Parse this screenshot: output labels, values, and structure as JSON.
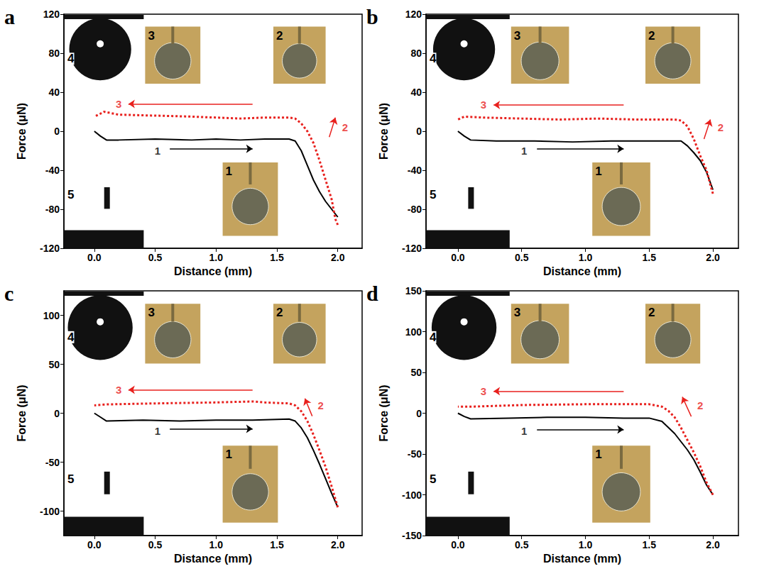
{
  "chart_data": [
    {
      "type": "line",
      "title": "a",
      "x_label": "Distance (mm)",
      "y_label": "Force (μN)",
      "xlim": [
        -0.25,
        2.2
      ],
      "xticks": [
        {
          "value": 0,
          "label": "0.0"
        },
        0.5,
        {
          "value": 1,
          "label": "1.0"
        },
        1.5,
        {
          "value": 2,
          "label": "2.0"
        }
      ],
      "ylim": [
        -120,
        120
      ],
      "yticks": [
        -120,
        -80,
        -40,
        0,
        40,
        80,
        120
      ],
      "grid": false,
      "series": [
        {
          "color": "#000000",
          "line_style": "solid",
          "marker": "none",
          "x": [
            0,
            0.05,
            0.1,
            0.2,
            0.5,
            0.8,
            1.0,
            1.2,
            1.4,
            1.6,
            1.65,
            1.7,
            1.75,
            1.8,
            1.85,
            1.9,
            1.95,
            2.0
          ],
          "values": [
            0,
            -5,
            -9,
            -9,
            -8,
            -9,
            -8,
            -9,
            -8,
            -8,
            -10,
            -20,
            -35,
            -50,
            -62,
            -72,
            -80,
            -88
          ]
        },
        {
          "color": "#e8211e",
          "line_style": "dotted",
          "marker": "none",
          "x": [
            2.0,
            1.98,
            1.95,
            1.9,
            1.85,
            1.8,
            1.75,
            1.7,
            1.65,
            1.6,
            1.4,
            1.2,
            1.0,
            0.8,
            0.5,
            0.2,
            0.08,
            0.05,
            0.0
          ],
          "values": [
            -96,
            -90,
            -70,
            -50,
            -30,
            -12,
            0,
            8,
            13,
            14,
            14,
            13,
            14,
            15,
            16,
            17,
            20,
            18,
            15
          ]
        }
      ],
      "arrows": [
        {
          "color": "#000000",
          "from": [
            0.62,
            -18
          ],
          "to": [
            1.3,
            -18
          ]
        },
        {
          "color": "#e8211e",
          "from": [
            1.3,
            28
          ],
          "to": [
            0.28,
            28
          ]
        },
        {
          "color": "#e8211e",
          "from": [
            1.93,
            -6
          ],
          "to": [
            1.98,
            14
          ]
        }
      ],
      "annotations": [
        {
          "text": "1",
          "x": 0.52,
          "y": -20,
          "color": "#000000"
        },
        {
          "text": "3",
          "x": 0.2,
          "y": 28,
          "color": "#e8211e"
        },
        {
          "text": "2",
          "x": 2.06,
          "y": 4,
          "color": "#e8211e"
        }
      ],
      "insets": [
        "1",
        "2",
        "3",
        "4",
        "5"
      ]
    },
    {
      "type": "line",
      "title": "b",
      "x_label": "Distance (mm)",
      "y_label": "Force (μN)",
      "xlim": [
        -0.25,
        2.2
      ],
      "xticks": [
        {
          "value": 0,
          "label": "0.0"
        },
        0.5,
        {
          "value": 1,
          "label": "1.0"
        },
        1.5,
        {
          "value": 2,
          "label": "2.0"
        }
      ],
      "ylim": [
        -120,
        120
      ],
      "yticks": [
        -120,
        -80,
        -40,
        0,
        40,
        80,
        120
      ],
      "grid": false,
      "series": [
        {
          "color": "#000000",
          "line_style": "solid",
          "marker": "none",
          "x": [
            0,
            0.05,
            0.1,
            0.3,
            0.6,
            0.9,
            1.2,
            1.5,
            1.75,
            1.8,
            1.85,
            1.9,
            1.95,
            2.0
          ],
          "values": [
            0,
            -5,
            -9,
            -10,
            -10,
            -11,
            -10,
            -10,
            -10,
            -15,
            -22,
            -30,
            -42,
            -60
          ]
        },
        {
          "color": "#e8211e",
          "line_style": "dotted",
          "marker": "none",
          "x": [
            2.0,
            1.98,
            1.95,
            1.9,
            1.85,
            1.8,
            1.75,
            1.7,
            1.4,
            1.1,
            0.8,
            0.5,
            0.2,
            0.05,
            0.0
          ],
          "values": [
            -64,
            -55,
            -40,
            -25,
            -8,
            5,
            11,
            12,
            12,
            13,
            12,
            13,
            14,
            15,
            12
          ]
        }
      ],
      "arrows": [
        {
          "color": "#000000",
          "from": [
            0.62,
            -18
          ],
          "to": [
            1.3,
            -18
          ]
        },
        {
          "color": "#e8211e",
          "from": [
            1.3,
            27
          ],
          "to": [
            0.28,
            27
          ]
        },
        {
          "color": "#e8211e",
          "from": [
            1.93,
            -8
          ],
          "to": [
            1.98,
            12
          ]
        }
      ],
      "annotations": [
        {
          "text": "1",
          "x": 0.52,
          "y": -20,
          "color": "#000000"
        },
        {
          "text": "3",
          "x": 0.2,
          "y": 27,
          "color": "#e8211e"
        },
        {
          "text": "2",
          "x": 2.06,
          "y": 4,
          "color": "#e8211e"
        }
      ],
      "insets": [
        "1",
        "2",
        "3",
        "4",
        "5"
      ]
    },
    {
      "type": "line",
      "title": "c",
      "x_label": "Distance (mm)",
      "y_label": "Force (μN)",
      "xlim": [
        -0.25,
        2.2
      ],
      "xticks": [
        {
          "value": 0,
          "label": "0.0"
        },
        0.5,
        {
          "value": 1,
          "label": "1.0"
        },
        1.5,
        {
          "value": 2,
          "label": "2.0"
        }
      ],
      "ylim": [
        -125,
        125
      ],
      "yticks": [
        -100,
        -50,
        0,
        50,
        100
      ],
      "grid": false,
      "series": [
        {
          "color": "#000000",
          "line_style": "solid",
          "marker": "none",
          "x": [
            0,
            0.05,
            0.1,
            0.4,
            0.7,
            1.0,
            1.3,
            1.6,
            1.65,
            1.7,
            1.75,
            1.8,
            1.85,
            1.9,
            1.95,
            2.0
          ],
          "values": [
            0,
            -4,
            -8,
            -7,
            -8,
            -7,
            -7,
            -6,
            -8,
            -15,
            -25,
            -38,
            -52,
            -67,
            -82,
            -96
          ]
        },
        {
          "color": "#e8211e",
          "line_style": "dotted",
          "marker": "none",
          "x": [
            2.0,
            1.95,
            1.9,
            1.85,
            1.8,
            1.75,
            1.7,
            1.65,
            1.6,
            1.4,
            1.3,
            1.0,
            0.5,
            0.1,
            0.0
          ],
          "values": [
            -96,
            -75,
            -55,
            -38,
            -22,
            -8,
            2,
            8,
            10,
            11,
            12,
            11,
            10,
            9,
            8
          ]
        }
      ],
      "arrows": [
        {
          "color": "#000000",
          "from": [
            0.62,
            -16
          ],
          "to": [
            1.3,
            -16
          ]
        },
        {
          "color": "#e8211e",
          "from": [
            1.3,
            24
          ],
          "to": [
            0.28,
            24
          ]
        },
        {
          "color": "#e8211e",
          "from": [
            1.79,
            -3
          ],
          "to": [
            1.73,
            15
          ]
        }
      ],
      "annotations": [
        {
          "text": "1",
          "x": 0.52,
          "y": -18,
          "color": "#000000"
        },
        {
          "text": "3",
          "x": 0.2,
          "y": 24,
          "color": "#e8211e"
        },
        {
          "text": "2",
          "x": 1.86,
          "y": 8,
          "color": "#e8211e"
        }
      ],
      "insets": [
        "1",
        "2",
        "3",
        "4",
        "5"
      ]
    },
    {
      "type": "line",
      "title": "d",
      "x_label": "Distance (mm)",
      "y_label": "Force (μN)",
      "xlim": [
        -0.25,
        2.2
      ],
      "xticks": [
        {
          "value": 0,
          "label": "0.0"
        },
        0.5,
        {
          "value": 1,
          "label": "1.0"
        },
        1.5,
        {
          "value": 2,
          "label": "2.0"
        }
      ],
      "ylim": [
        -150,
        150
      ],
      "yticks": [
        -150,
        -100,
        -50,
        0,
        50,
        100,
        150
      ],
      "grid": false,
      "series": [
        {
          "color": "#000000",
          "line_style": "solid",
          "marker": "none",
          "x": [
            0,
            0.05,
            0.1,
            0.4,
            0.7,
            1.0,
            1.3,
            1.5,
            1.6,
            1.7,
            1.8,
            1.85,
            1.9,
            1.95,
            2.0
          ],
          "values": [
            0,
            -4,
            -7,
            -6,
            -5,
            -5,
            -6,
            -6,
            -10,
            -25,
            -45,
            -57,
            -72,
            -88,
            -100
          ]
        },
        {
          "color": "#e8211e",
          "line_style": "dotted",
          "marker": "none",
          "x": [
            2.0,
            1.95,
            1.9,
            1.85,
            1.8,
            1.75,
            1.7,
            1.65,
            1.6,
            1.5,
            1.0,
            0.5,
            0.1,
            0.0
          ],
          "values": [
            -100,
            -85,
            -65,
            -48,
            -33,
            -18,
            -5,
            3,
            8,
            11,
            11,
            10,
            8,
            8
          ]
        }
      ],
      "arrows": [
        {
          "color": "#000000",
          "from": [
            0.62,
            -20
          ],
          "to": [
            1.3,
            -20
          ]
        },
        {
          "color": "#e8211e",
          "from": [
            1.3,
            27
          ],
          "to": [
            0.28,
            27
          ]
        },
        {
          "color": "#e8211e",
          "from": [
            1.83,
            -4
          ],
          "to": [
            1.76,
            20
          ]
        }
      ],
      "annotations": [
        {
          "text": "1",
          "x": 0.52,
          "y": -22,
          "color": "#000000"
        },
        {
          "text": "3",
          "x": 0.2,
          "y": 27,
          "color": "#e8211e"
        },
        {
          "text": "2",
          "x": 1.9,
          "y": 10,
          "color": "#e8211e"
        }
      ],
      "insets": [
        "1",
        "2",
        "3",
        "4",
        "5"
      ]
    }
  ]
}
